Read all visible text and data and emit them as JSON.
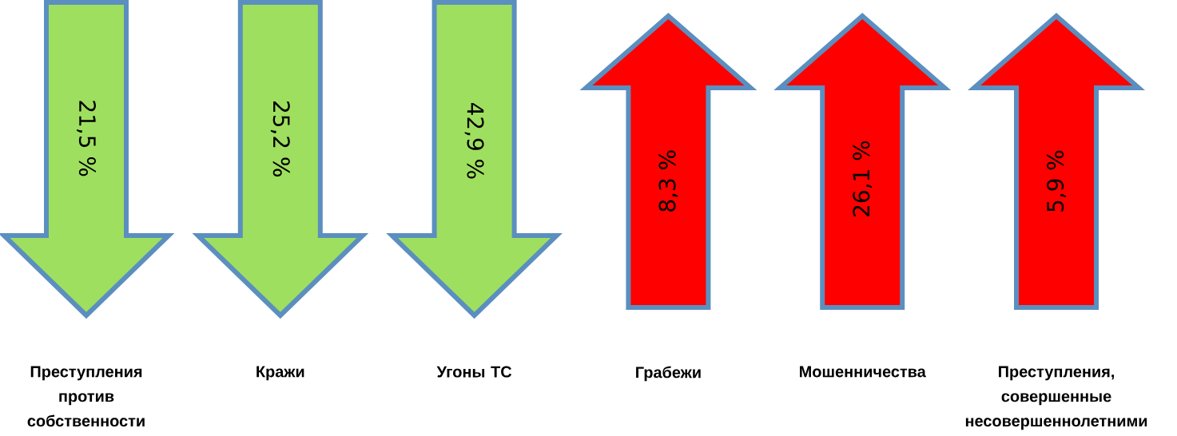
{
  "chart_data": {
    "type": "other",
    "categories": [
      "Преступления против собственности",
      "Кражи",
      "Угоны ТС",
      "Грабежи",
      "Мошенничества",
      "Преступления, совершенные несовершеннолетними"
    ],
    "values": [
      21.5,
      25.2,
      42.9,
      8.3,
      26.1,
      5.9
    ],
    "value_labels": [
      "21,5 %",
      "25,2 %",
      "42,9 %",
      "8,3 %",
      "26,1 %",
      "5,9 %"
    ],
    "colors": [
      "#9fdf5f",
      "#9fdf5f",
      "#9fdf5f",
      "#fe0000",
      "#fe0000",
      "#fe0000"
    ]
  }
}
